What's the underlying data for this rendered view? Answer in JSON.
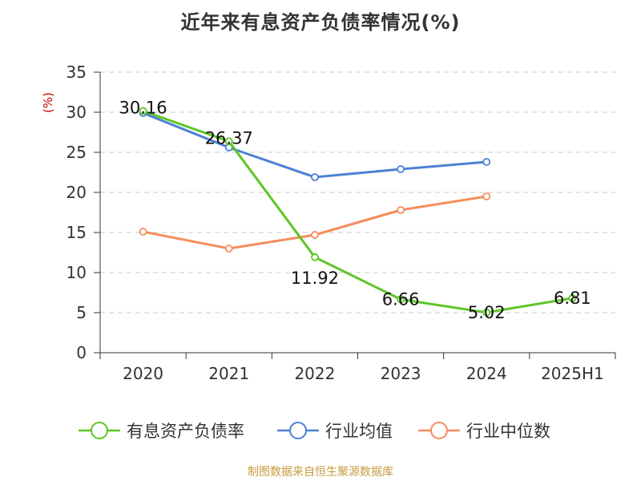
{
  "title": "近年来有息资产负债率情况(%)",
  "source": "制图数据来自恒生聚源数据库",
  "colors": {
    "series_main": "#5ec626",
    "series_avg": "#4e80d6",
    "series_median": "#f58d5d",
    "axis": "#333333",
    "grid": "#c8c8c8",
    "unit": "#cc0000",
    "source": "#c79a3f"
  },
  "chart_data": {
    "type": "line",
    "title": "近年来有息资产负债率情况(%)",
    "xlabel": "",
    "ylabel": "(%)",
    "ylim": [
      0,
      35
    ],
    "yticks": [
      "0",
      "5",
      "10",
      "15",
      "20",
      "25",
      "30",
      "35"
    ],
    "categories": [
      "2020",
      "2021",
      "2022",
      "2023",
      "2024",
      "2025H1"
    ],
    "grid": true,
    "legend_position": "bottom",
    "series": [
      {
        "name": "有息资产负债率",
        "color": "#5ec626",
        "values": [
          30.16,
          26.37,
          11.92,
          6.66,
          5.02,
          6.81
        ],
        "data_labels": [
          "30.16",
          "26.37",
          "11.92",
          "6.66",
          "5.02",
          "6.81"
        ]
      },
      {
        "name": "行业均值",
        "color": "#4e80d6",
        "values": [
          29.9,
          25.6,
          21.9,
          22.9,
          23.8,
          null
        ]
      },
      {
        "name": "行业中位数",
        "color": "#f58d5d",
        "values": [
          15.1,
          13.0,
          14.7,
          17.8,
          19.5,
          null
        ]
      }
    ]
  }
}
